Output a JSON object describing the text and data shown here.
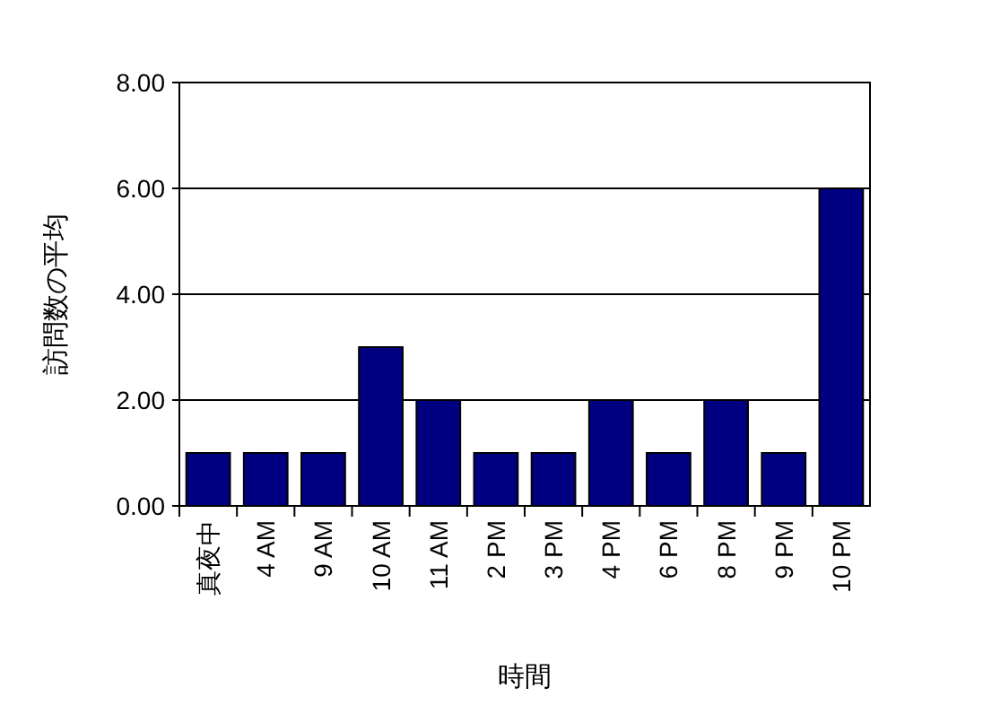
{
  "chart_data": {
    "type": "bar",
    "xlabel": "時間",
    "ylabel": "訪問数の平均",
    "categories": [
      "真夜中",
      "4 AM",
      "9 AM",
      "10 AM",
      "11 AM",
      "2 PM",
      "3 PM",
      "4 PM",
      "6 PM",
      "8 PM",
      "9 PM",
      "10 PM"
    ],
    "values": [
      1,
      1,
      1,
      3,
      2,
      1,
      1,
      2,
      1,
      2,
      1,
      6
    ],
    "color": "#000080",
    "ylim": [
      0,
      8
    ],
    "yticks": [
      {
        "value": 0,
        "label": "0.00"
      },
      {
        "value": 2,
        "label": "2.00"
      },
      {
        "value": 4,
        "label": "4.00"
      },
      {
        "value": 6,
        "label": "6.00"
      },
      {
        "value": 8,
        "label": "8.00"
      }
    ],
    "grid": "y"
  }
}
